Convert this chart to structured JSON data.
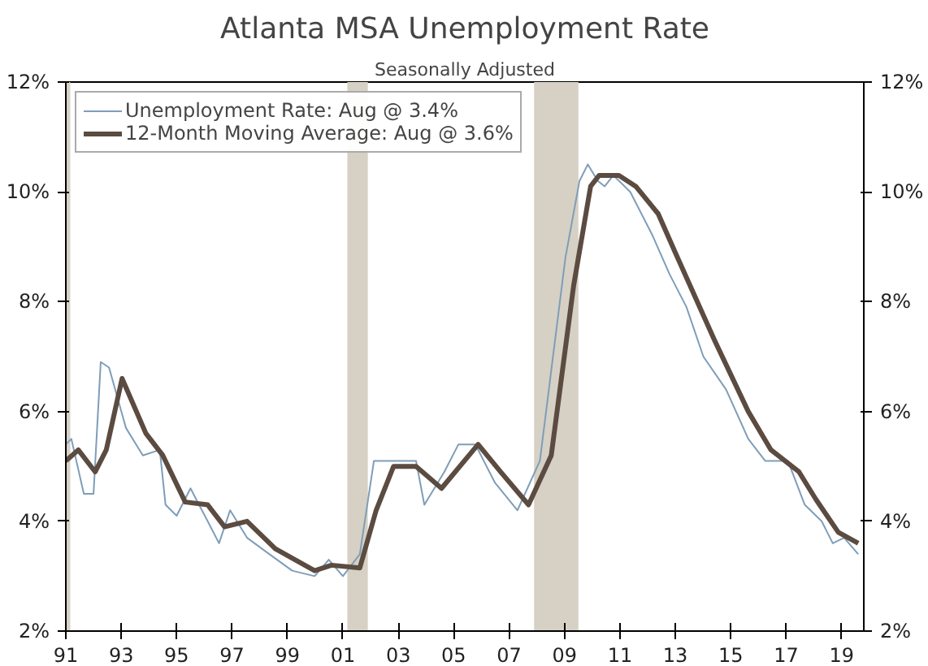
{
  "chart_data": {
    "type": "line",
    "title": "Atlanta MSA Unemployment Rate",
    "subtitle": "Seasonally Adjusted",
    "xlim": [
      1991,
      2019.8
    ],
    "xticks": [
      {
        "value": 1991,
        "label": "91"
      },
      {
        "value": 1993,
        "label": "93"
      },
      {
        "value": 1995,
        "label": "95"
      },
      {
        "value": 1997,
        "label": "97"
      },
      {
        "value": 1999,
        "label": "99"
      },
      {
        "value": 2001,
        "label": "01"
      },
      {
        "value": 2003,
        "label": "03"
      },
      {
        "value": 2005,
        "label": "05"
      },
      {
        "value": 2007,
        "label": "07"
      },
      {
        "value": 2009,
        "label": "09"
      },
      {
        "value": 2011,
        "label": "11"
      },
      {
        "value": 2013,
        "label": "13"
      },
      {
        "value": 2015,
        "label": "15"
      },
      {
        "value": 2017,
        "label": "17"
      },
      {
        "value": 2019,
        "label": "19"
      }
    ],
    "ylim": [
      2,
      12
    ],
    "yticks": [
      {
        "value": 2,
        "label": "2%"
      },
      {
        "value": 4,
        "label": "4%"
      },
      {
        "value": 6,
        "label": "6%"
      },
      {
        "value": 8,
        "label": "8%"
      },
      {
        "value": 10,
        "label": "10%"
      },
      {
        "value": 12,
        "label": "12%"
      }
    ],
    "y2lim": [
      2,
      12
    ],
    "y2ticks": [
      {
        "value": 2,
        "label": "2%"
      },
      {
        "value": 4,
        "label": "4%"
      },
      {
        "value": 6,
        "label": "6%"
      },
      {
        "value": 8,
        "label": "8%"
      },
      {
        "value": 10,
        "label": "10%"
      },
      {
        "value": 12,
        "label": "12%"
      }
    ],
    "grid": false,
    "legend": "top left",
    "bands": [
      {
        "axis": "x",
        "from": 1991,
        "to": 1991.16,
        "color": "#d6d1c4"
      },
      {
        "axis": "x",
        "from": 2001.16,
        "to": 2001.9,
        "color": "#d6d1c4"
      },
      {
        "axis": "x",
        "from": 2007.9,
        "to": 2009.5,
        "color": "#d6d1c4"
      }
    ],
    "series": [
      {
        "name": "Unemployment Rate: Aug @ 3.4%",
        "color": "#7f9db9",
        "x": [
          1991.0,
          1991.2,
          1991.65,
          1992.0,
          1992.26,
          1992.56,
          1993.17,
          1993.78,
          1994.39,
          1994.6,
          1995.0,
          1995.5,
          1996.12,
          1996.53,
          1996.93,
          1997.54,
          1998.35,
          1999.17,
          1999.98,
          2000.49,
          2001.0,
          2001.61,
          2002.12,
          2002.83,
          2003.64,
          2003.94,
          2004.66,
          2005.17,
          2005.78,
          2006.49,
          2007.3,
          2008.11,
          2009.03,
          2009.54,
          2009.84,
          2010.2,
          2010.45,
          2010.76,
          2011.37,
          2012.18,
          2012.79,
          2013.4,
          2014.01,
          2014.83,
          2015.63,
          2016.24,
          2017.06,
          2017.67,
          2018.28,
          2018.68,
          2019.09,
          2019.6
        ],
        "values": [
          5.4,
          5.5,
          4.5,
          4.5,
          6.9,
          6.8,
          5.7,
          5.2,
          5.3,
          4.3,
          4.1,
          4.6,
          4.0,
          3.6,
          4.2,
          3.7,
          3.4,
          3.1,
          3.0,
          3.3,
          3.0,
          3.4,
          5.1,
          5.1,
          5.1,
          4.3,
          4.9,
          5.4,
          5.4,
          4.7,
          4.2,
          5.1,
          8.8,
          10.2,
          10.5,
          10.2,
          10.1,
          10.3,
          10.0,
          9.2,
          8.5,
          7.9,
          7.0,
          6.4,
          5.5,
          5.1,
          5.1,
          4.3,
          4.0,
          3.6,
          3.7,
          3.4
        ]
      },
      {
        "name": "12-Month Moving Average: Aug @ 3.6%",
        "color": "#5b4b40",
        "x": [
          1991.0,
          1991.45,
          1992.06,
          1992.46,
          1993.03,
          1993.89,
          1994.5,
          1995.31,
          1996.12,
          1996.73,
          1997.54,
          1998.56,
          1999.98,
          2000.59,
          2001.61,
          2002.2,
          2002.83,
          2003.64,
          2004.56,
          2005.88,
          2006.69,
          2007.7,
          2008.52,
          2009.33,
          2009.94,
          2010.25,
          2010.96,
          2011.57,
          2012.38,
          2012.99,
          2014.41,
          2015.63,
          2016.45,
          2017.46,
          2018.07,
          2018.88,
          2019.6
        ],
        "values": [
          5.1,
          5.3,
          4.9,
          5.3,
          6.6,
          5.6,
          5.2,
          4.35,
          4.3,
          3.9,
          4.0,
          3.5,
          3.1,
          3.2,
          3.15,
          4.2,
          5.0,
          5.0,
          4.6,
          5.4,
          4.9,
          4.3,
          5.2,
          8.3,
          10.1,
          10.3,
          10.3,
          10.1,
          9.6,
          8.9,
          7.3,
          6.0,
          5.3,
          4.9,
          4.4,
          3.8,
          3.6
        ]
      }
    ]
  }
}
